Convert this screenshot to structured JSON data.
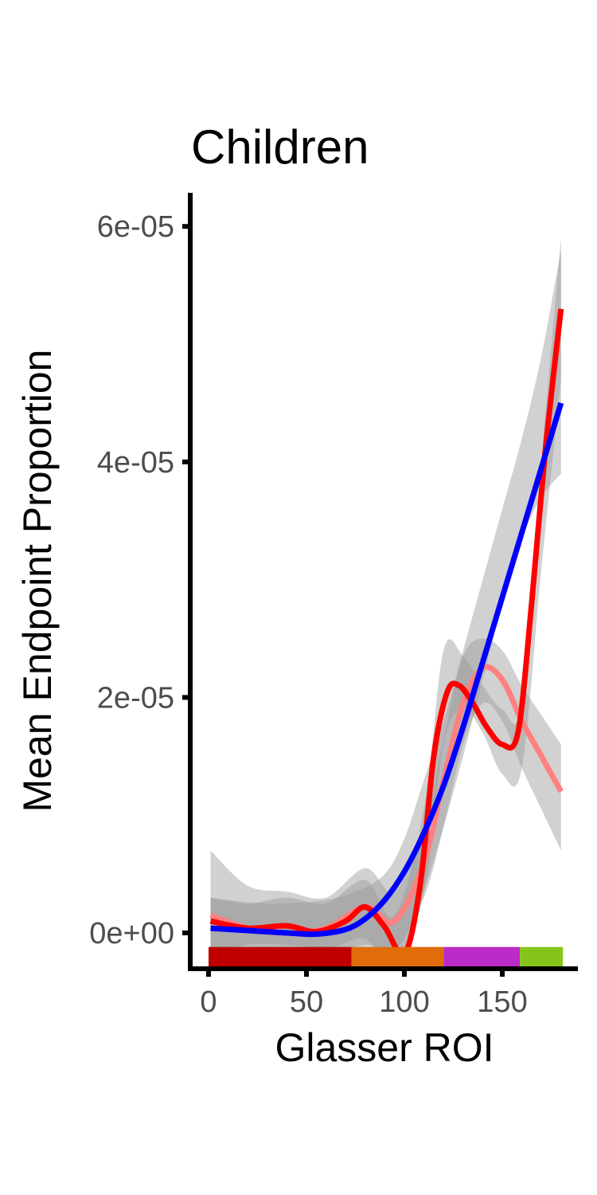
{
  "chart_data": {
    "type": "line",
    "title": "Children",
    "xlabel": "Glasser ROI",
    "ylabel": "Mean Endpoint Proportion",
    "xlim": [
      -8,
      188
    ],
    "ylim": [
      -3.2e-06,
      6.3e-05
    ],
    "x_ticks": [
      0,
      50,
      100,
      150
    ],
    "x_tick_labels": [
      "0",
      "50",
      "100",
      "150"
    ],
    "y_ticks": [
      0,
      2e-05,
      4e-05,
      6e-05
    ],
    "y_tick_labels": [
      "0e+00",
      "2e-05",
      "4e-05",
      "6e-05"
    ],
    "grid": false,
    "legend": "none",
    "series": [
      {
        "style": "ribbon",
        "color": "#9a9a9a",
        "opacity": 0.45,
        "x": [
          1,
          20,
          40,
          60,
          75,
          90,
          100,
          110,
          120,
          130,
          140,
          150,
          160,
          170,
          180
        ],
        "lower": [
          -2e-06,
          -1e-06,
          -1e-06,
          -1.5e-06,
          -2e-06,
          -3e-06,
          -1.5e-06,
          3.5e-06,
          9e-06,
          1.5e-05,
          2.15e-05,
          2.8e-05,
          3.35e-05,
          3.7e-05,
          3.9e-05
        ],
        "upper": [
          3e-06,
          2.6e-06,
          2.5e-06,
          2.8e-06,
          3.5e-06,
          5e-06,
          8e-06,
          1.3e-05,
          1.8e-05,
          2.4e-05,
          3e-05,
          3.6e-05,
          4.2e-05,
          4.9e-05,
          5.8e-05
        ]
      },
      {
        "style": "ribbon",
        "color": "#9a9a9a",
        "opacity": 0.45,
        "x": [
          1,
          20,
          40,
          60,
          80,
          95,
          110,
          120,
          130,
          140,
          150,
          160,
          170,
          180
        ],
        "lower": [
          -2.5e-06,
          -1.5e-06,
          -2e-06,
          -2e-06,
          -1e-06,
          -1.5e-06,
          3e-06,
          9e-06,
          1.6e-05,
          1.95e-05,
          1.8e-05,
          1.4e-05,
          1.05e-05,
          7e-06
        ],
        "upper": [
          7e-06,
          4e-06,
          3.5e-06,
          3e-06,
          5.5e-06,
          3.5e-06,
          9e-06,
          1.65e-05,
          2.35e-05,
          2.5e-05,
          2.4e-05,
          2.1e-05,
          1.85e-05,
          1.6e-05
        ]
      },
      {
        "style": "ribbon",
        "color": "#9a9a9a",
        "opacity": 0.45,
        "x": [
          1,
          20,
          40,
          60,
          80,
          95,
          110,
          120,
          130,
          140,
          150,
          160,
          170,
          180
        ],
        "lower": [
          -1.5e-06,
          -1.5e-06,
          -2e-06,
          -1.5e-06,
          -5e-07,
          -3e-06,
          3.5e-06,
          1.6e-05,
          1.9e-05,
          1.7e-05,
          1.35e-05,
          1.4e-05,
          3.1e-05,
          4.7e-05
        ],
        "upper": [
          3e-06,
          2.5e-06,
          3e-06,
          2.5e-06,
          4.5e-06,
          1.5e-06,
          1.05e-05,
          2.4e-05,
          2.35e-05,
          2.1e-05,
          1.9e-05,
          1.95e-05,
          4e-05,
          5.9e-05
        ]
      },
      {
        "style": "line",
        "color": "#ff8080",
        "x": [
          1,
          20,
          40,
          60,
          80,
          95,
          110,
          120,
          130,
          140,
          150,
          160,
          170,
          180
        ],
        "values": [
          1.5e-06,
          4e-07,
          0.0,
          4e-07,
          2.2e-06,
          1e-06,
          6e-06,
          1.3e-05,
          1.95e-05,
          2.25e-05,
          2.15e-05,
          1.8e-05,
          1.5e-05,
          1.2e-05
        ]
      },
      {
        "style": "line",
        "color": "#ff0000",
        "x": [
          1,
          20,
          40,
          55,
          70,
          80,
          90,
          100,
          108,
          115,
          122,
          128,
          135,
          142,
          150,
          158,
          165,
          172,
          180
        ],
        "values": [
          1e-06,
          4e-07,
          6e-07,
          1e-07,
          1e-06,
          2.2e-06,
          5e-07,
          -1.8e-06,
          4e-06,
          1.5e-05,
          2.05e-05,
          2.1e-05,
          1.95e-05,
          1.75e-05,
          1.6e-05,
          1.7e-05,
          2.8e-05,
          4.1e-05,
          5.3e-05
        ]
      },
      {
        "style": "line",
        "color": "#0000ff",
        "x": [
          1,
          20,
          40,
          55,
          70,
          80,
          90,
          100,
          110,
          120,
          130,
          140,
          150,
          160,
          170,
          180
        ],
        "values": [
          4e-07,
          2e-07,
          0.0,
          -1e-07,
          3e-07,
          1.2e-06,
          2.8e-06,
          5.2e-06,
          8.5e-06,
          1.25e-05,
          1.75e-05,
          2.3e-05,
          2.85e-05,
          3.4e-05,
          3.95e-05,
          4.5e-05
        ]
      }
    ],
    "region_bar": {
      "y_bottom": -3.2e-06,
      "y_top": -1.2e-06,
      "segments": [
        {
          "start": 0,
          "end": 73,
          "color": "#c00000"
        },
        {
          "start": 73,
          "end": 120,
          "color": "#e06c0a"
        },
        {
          "start": 120,
          "end": 159,
          "color": "#bb2bc8"
        },
        {
          "start": 159,
          "end": 181,
          "color": "#86c41b"
        }
      ]
    }
  }
}
